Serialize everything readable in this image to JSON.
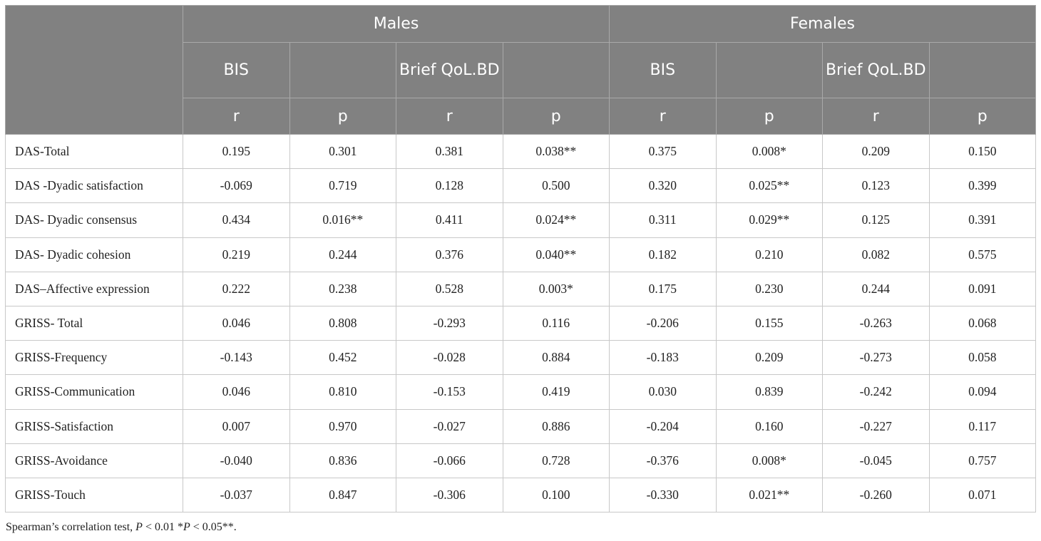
{
  "header": {
    "groups": [
      "Males",
      "Females"
    ],
    "measures": [
      "BIS",
      "",
      "Brief QoL.BD",
      "",
      "BIS",
      "",
      "Brief QoL.BD",
      ""
    ],
    "stats": [
      "r",
      "p",
      "r",
      "p",
      "r",
      "p",
      "r",
      "p"
    ]
  },
  "rows": [
    {
      "label": "DAS-Total",
      "values": [
        "0.195",
        "0.301",
        "0.381",
        "0.038**",
        "0.375",
        "0.008*",
        "0.209",
        "0.150"
      ]
    },
    {
      "label": "DAS -Dyadic satisfaction",
      "values": [
        "-0.069",
        "0.719",
        "0.128",
        "0.500",
        "0.320",
        "0.025**",
        "0.123",
        "0.399"
      ]
    },
    {
      "label": "DAS- Dyadic consensus",
      "values": [
        "0.434",
        "0.016**",
        "0.411",
        "0.024**",
        "0.311",
        "0.029**",
        "0.125",
        "0.391"
      ]
    },
    {
      "label": "DAS- Dyadic cohesion",
      "values": [
        "0.219",
        "0.244",
        "0.376",
        "0.040**",
        "0.182",
        "0.210",
        "0.082",
        "0.575"
      ]
    },
    {
      "label": "DAS–Affective expression",
      "values": [
        "0.222",
        "0.238",
        "0.528",
        "0.003*",
        "0.175",
        "0.230",
        "0.244",
        "0.091"
      ]
    },
    {
      "label": "GRISS- Total",
      "values": [
        "0.046",
        "0.808",
        "-0.293",
        "0.116",
        "-0.206",
        "0.155",
        "-0.263",
        "0.068"
      ]
    },
    {
      "label": "GRISS-Frequency",
      "values": [
        "-0.143",
        "0.452",
        "-0.028",
        "0.884",
        "-0.183",
        "0.209",
        "-0.273",
        "0.058"
      ]
    },
    {
      "label": "GRISS-Communication",
      "values": [
        "0.046",
        "0.810",
        "-0.153",
        "0.419",
        "0.030",
        "0.839",
        "-0.242",
        "0.094"
      ]
    },
    {
      "label": "GRISS-Satisfaction",
      "values": [
        "0.007",
        "0.970",
        "-0.027",
        "0.886",
        "-0.204",
        "0.160",
        "-0.227",
        "0.117"
      ]
    },
    {
      "label": "GRISS-Avoidance",
      "values": [
        "-0.040",
        "0.836",
        "-0.066",
        "0.728",
        "-0.376",
        "0.008*",
        "-0.045",
        "0.757"
      ]
    },
    {
      "label": "GRISS-Touch",
      "values": [
        "-0.037",
        "0.847",
        "-0.306",
        "0.100",
        "-0.330",
        "0.021**",
        "-0.260",
        "0.071"
      ]
    }
  ],
  "footnote": {
    "prefix": "Spearman’s correlation test, ",
    "p1": "P",
    "mid1": " < 0.01 *",
    "p2": "P",
    "mid2": " < 0.05**."
  },
  "colors": {
    "header_bg": "#818181",
    "header_text": "#ffffff",
    "border": "#c8c8c8"
  }
}
